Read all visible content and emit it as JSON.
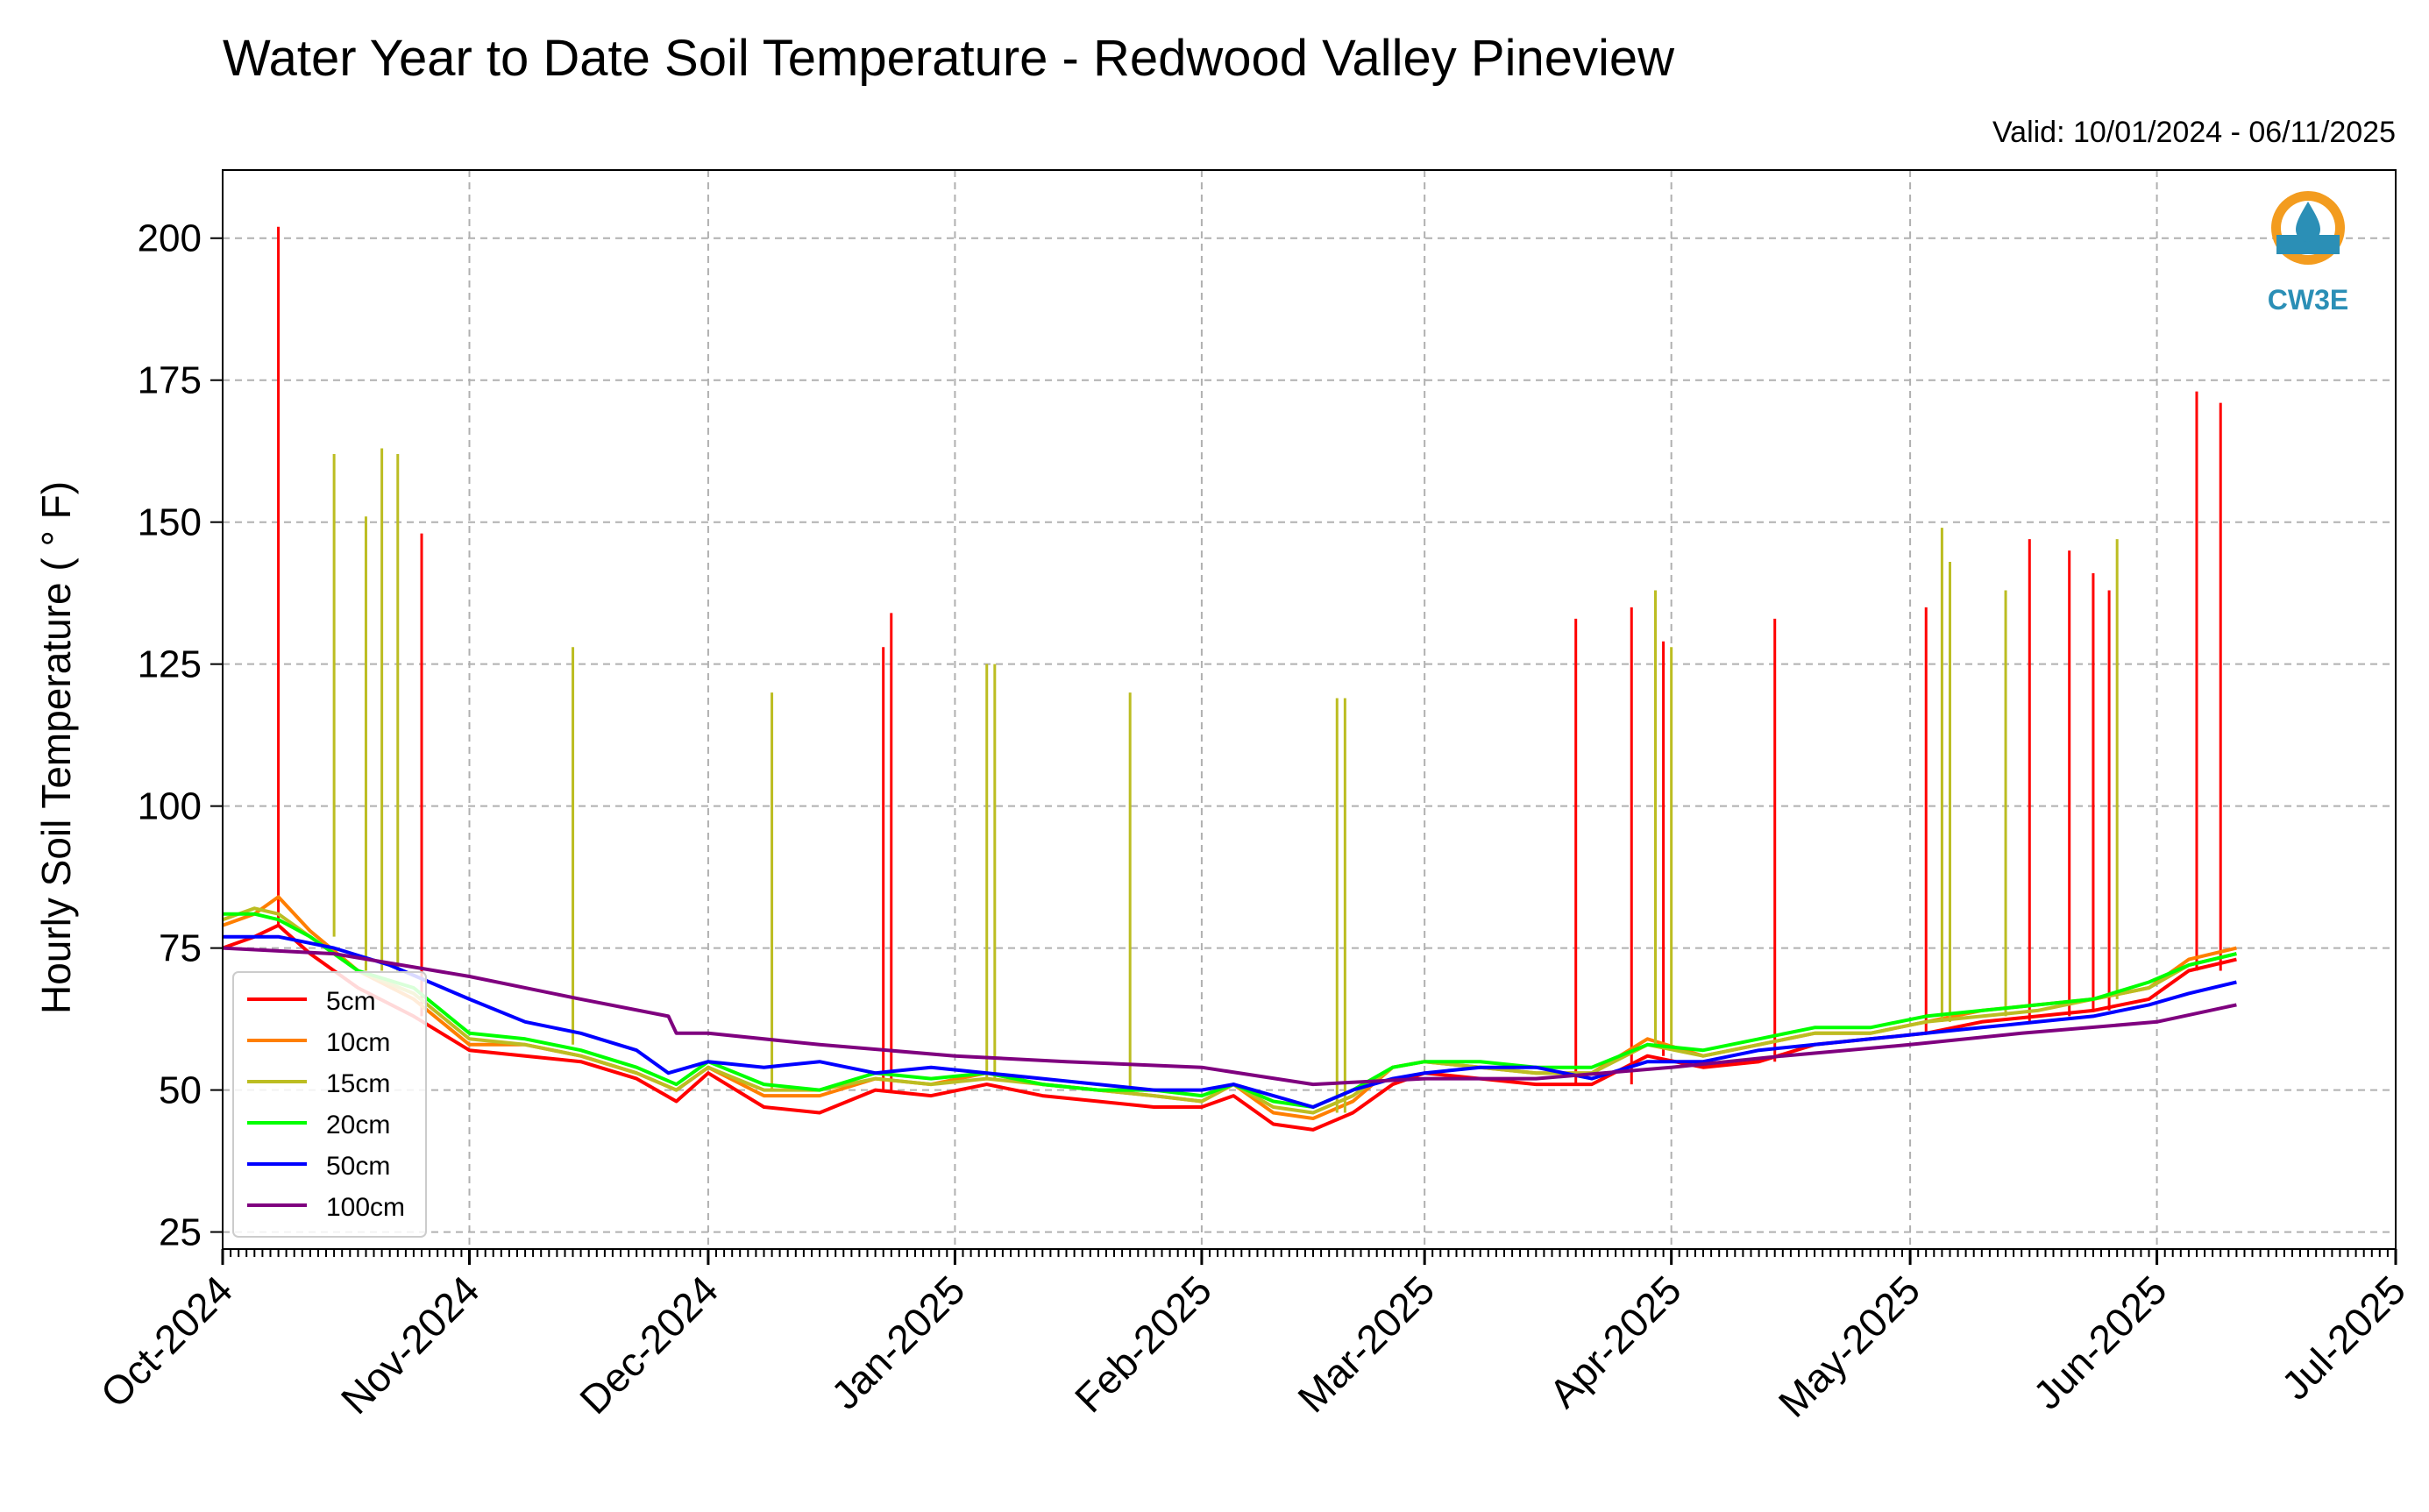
{
  "chart_data": {
    "type": "line",
    "title": "Water Year to Date Soil Temperature - Redwood Valley Pineview",
    "subtitle": "Valid: 10/01/2024 - 06/11/2025",
    "ylabel": "Hourly Soil Temperature ( ° F)",
    "xlabel": "",
    "ylim": [
      22,
      212
    ],
    "yticks": [
      25,
      50,
      75,
      100,
      125,
      150,
      175,
      200
    ],
    "x_range": [
      "2024-10-01",
      "2025-07-01"
    ],
    "x_tick_dates": [
      "2024-10-01",
      "2024-11-01",
      "2024-12-01",
      "2025-01-01",
      "2025-02-01",
      "2025-03-01",
      "2025-04-01",
      "2025-05-01",
      "2025-06-01",
      "2025-07-01"
    ],
    "x_tick_labels": [
      "Oct-2024",
      "Nov-2024",
      "Dec-2024",
      "Jan-2025",
      "Feb-2025",
      "Mar-2025",
      "Apr-2025",
      "May-2025",
      "Jun-2025",
      "Jul-2025"
    ],
    "grid": true,
    "legend_position": "lower-left",
    "logo_text": "CW3E",
    "series": [
      {
        "name": "5cm",
        "color": "#ff0000",
        "points": [
          [
            "2024-10-01",
            75
          ],
          [
            "2024-10-05",
            77
          ],
          [
            "2024-10-08",
            79
          ],
          [
            "2024-10-12",
            74
          ],
          [
            "2024-10-18",
            68
          ],
          [
            "2024-10-25",
            63
          ],
          [
            "2024-11-01",
            57
          ],
          [
            "2024-11-08",
            56
          ],
          [
            "2024-11-15",
            55
          ],
          [
            "2024-11-22",
            52
          ],
          [
            "2024-11-27",
            48
          ],
          [
            "2024-12-01",
            53
          ],
          [
            "2024-12-08",
            47
          ],
          [
            "2024-12-15",
            46
          ],
          [
            "2024-12-22",
            50
          ],
          [
            "2024-12-29",
            49
          ],
          [
            "2025-01-05",
            51
          ],
          [
            "2025-01-12",
            49
          ],
          [
            "2025-01-19",
            48
          ],
          [
            "2025-01-26",
            47
          ],
          [
            "2025-02-01",
            47
          ],
          [
            "2025-02-05",
            49
          ],
          [
            "2025-02-10",
            44
          ],
          [
            "2025-02-15",
            43
          ],
          [
            "2025-02-20",
            46
          ],
          [
            "2025-02-25",
            51
          ],
          [
            "2025-03-01",
            53
          ],
          [
            "2025-03-08",
            52
          ],
          [
            "2025-03-15",
            51
          ],
          [
            "2025-03-22",
            51
          ],
          [
            "2025-03-29",
            56
          ],
          [
            "2025-04-05",
            54
          ],
          [
            "2025-04-12",
            55
          ],
          [
            "2025-04-19",
            58
          ],
          [
            "2025-04-26",
            59
          ],
          [
            "2025-05-03",
            60
          ],
          [
            "2025-05-10",
            62
          ],
          [
            "2025-05-17",
            63
          ],
          [
            "2025-05-24",
            64
          ],
          [
            "2025-05-31",
            66
          ],
          [
            "2025-06-05",
            71
          ],
          [
            "2025-06-11",
            73
          ]
        ],
        "spikes": [
          [
            "2024-10-08",
            202
          ],
          [
            "2024-10-26",
            148
          ],
          [
            "2024-12-23",
            128
          ],
          [
            "2024-12-24",
            134
          ],
          [
            "2025-03-20",
            133
          ],
          [
            "2025-03-27",
            135
          ],
          [
            "2025-03-31",
            129
          ],
          [
            "2025-04-14",
            133
          ],
          [
            "2025-05-03",
            135
          ],
          [
            "2025-05-16",
            147
          ],
          [
            "2025-05-21",
            145
          ],
          [
            "2025-05-24",
            141
          ],
          [
            "2025-05-26",
            138
          ],
          [
            "2025-06-06",
            173
          ],
          [
            "2025-06-09",
            171
          ]
        ]
      },
      {
        "name": "10cm",
        "color": "#ff7f00",
        "points": [
          [
            "2024-10-01",
            79
          ],
          [
            "2024-10-05",
            81
          ],
          [
            "2024-10-08",
            84
          ],
          [
            "2024-10-12",
            78
          ],
          [
            "2024-10-18",
            71
          ],
          [
            "2024-10-25",
            66
          ],
          [
            "2024-11-01",
            58
          ],
          [
            "2024-11-08",
            58
          ],
          [
            "2024-11-15",
            56
          ],
          [
            "2024-11-22",
            53
          ],
          [
            "2024-11-27",
            50
          ],
          [
            "2024-12-01",
            54
          ],
          [
            "2024-12-08",
            49
          ],
          [
            "2024-12-15",
            49
          ],
          [
            "2024-12-22",
            52
          ],
          [
            "2024-12-29",
            51
          ],
          [
            "2025-01-05",
            53
          ],
          [
            "2025-01-12",
            51
          ],
          [
            "2025-01-19",
            50
          ],
          [
            "2025-01-26",
            49
          ],
          [
            "2025-02-01",
            48
          ],
          [
            "2025-02-05",
            51
          ],
          [
            "2025-02-10",
            46
          ],
          [
            "2025-02-15",
            45
          ],
          [
            "2025-02-20",
            48
          ],
          [
            "2025-02-25",
            54
          ],
          [
            "2025-03-01",
            55
          ],
          [
            "2025-03-08",
            54
          ],
          [
            "2025-03-15",
            53
          ],
          [
            "2025-03-22",
            53
          ],
          [
            "2025-03-29",
            59
          ],
          [
            "2025-04-05",
            56
          ],
          [
            "2025-04-12",
            58
          ],
          [
            "2025-04-19",
            60
          ],
          [
            "2025-04-26",
            60
          ],
          [
            "2025-05-03",
            62
          ],
          [
            "2025-05-10",
            64
          ],
          [
            "2025-05-17",
            65
          ],
          [
            "2025-05-24",
            66
          ],
          [
            "2025-05-31",
            68
          ],
          [
            "2025-06-05",
            73
          ],
          [
            "2025-06-11",
            75
          ]
        ],
        "spikes": []
      },
      {
        "name": "15cm",
        "color": "#bcbd22",
        "points": [
          [
            "2024-10-01",
            80
          ],
          [
            "2024-10-05",
            82
          ],
          [
            "2024-10-08",
            81
          ],
          [
            "2024-10-12",
            77
          ],
          [
            "2024-10-18",
            71
          ],
          [
            "2024-10-25",
            67
          ],
          [
            "2024-11-01",
            59
          ],
          [
            "2024-11-08",
            58
          ],
          [
            "2024-11-15",
            56
          ],
          [
            "2024-11-22",
            53
          ],
          [
            "2024-11-27",
            50
          ],
          [
            "2024-12-01",
            54
          ],
          [
            "2024-12-08",
            50
          ],
          [
            "2024-12-15",
            50
          ],
          [
            "2024-12-22",
            52
          ],
          [
            "2024-12-29",
            51
          ],
          [
            "2025-01-05",
            52
          ],
          [
            "2025-01-12",
            51
          ],
          [
            "2025-01-19",
            50
          ],
          [
            "2025-01-26",
            49
          ],
          [
            "2025-02-01",
            48
          ],
          [
            "2025-02-05",
            51
          ],
          [
            "2025-02-10",
            47
          ],
          [
            "2025-02-15",
            46
          ],
          [
            "2025-02-20",
            49
          ],
          [
            "2025-02-25",
            54
          ],
          [
            "2025-03-01",
            55
          ],
          [
            "2025-03-08",
            54
          ],
          [
            "2025-03-15",
            53
          ],
          [
            "2025-03-22",
            53
          ],
          [
            "2025-03-29",
            58
          ],
          [
            "2025-04-05",
            56
          ],
          [
            "2025-04-12",
            58
          ],
          [
            "2025-04-19",
            60
          ],
          [
            "2025-04-26",
            60
          ],
          [
            "2025-05-03",
            62
          ],
          [
            "2025-05-10",
            63
          ],
          [
            "2025-05-17",
            64
          ],
          [
            "2025-05-24",
            66
          ],
          [
            "2025-05-31",
            68
          ],
          [
            "2025-06-05",
            72
          ],
          [
            "2025-06-11",
            74
          ]
        ],
        "spikes": [
          [
            "2024-10-15",
            162
          ],
          [
            "2024-10-19",
            151
          ],
          [
            "2024-10-21",
            163
          ],
          [
            "2024-10-23",
            162
          ],
          [
            "2024-11-14",
            128
          ],
          [
            "2024-12-09",
            120
          ],
          [
            "2025-01-05",
            125
          ],
          [
            "2025-01-06",
            125
          ],
          [
            "2025-01-23",
            120
          ],
          [
            "2025-02-18",
            119
          ],
          [
            "2025-02-19",
            119
          ],
          [
            "2025-03-30",
            138
          ],
          [
            "2025-04-01",
            128
          ],
          [
            "2025-05-05",
            149
          ],
          [
            "2025-05-06",
            143
          ],
          [
            "2025-05-13",
            138
          ],
          [
            "2025-05-27",
            147
          ]
        ]
      },
      {
        "name": "20cm",
        "color": "#00ff00",
        "points": [
          [
            "2024-10-01",
            81
          ],
          [
            "2024-10-05",
            81
          ],
          [
            "2024-10-08",
            80
          ],
          [
            "2024-10-12",
            77
          ],
          [
            "2024-10-18",
            71
          ],
          [
            "2024-10-25",
            68
          ],
          [
            "2024-11-01",
            60
          ],
          [
            "2024-11-08",
            59
          ],
          [
            "2024-11-15",
            57
          ],
          [
            "2024-11-22",
            54
          ],
          [
            "2024-11-27",
            51
          ],
          [
            "2024-12-01",
            55
          ],
          [
            "2024-12-08",
            51
          ],
          [
            "2024-12-15",
            50
          ],
          [
            "2024-12-22",
            53
          ],
          [
            "2024-12-29",
            52
          ],
          [
            "2025-01-05",
            53
          ],
          [
            "2025-01-12",
            51
          ],
          [
            "2025-01-19",
            50
          ],
          [
            "2025-01-26",
            50
          ],
          [
            "2025-02-01",
            49
          ],
          [
            "2025-02-05",
            51
          ],
          [
            "2025-02-10",
            48
          ],
          [
            "2025-02-15",
            47
          ],
          [
            "2025-02-20",
            50
          ],
          [
            "2025-02-25",
            54
          ],
          [
            "2025-03-01",
            55
          ],
          [
            "2025-03-08",
            55
          ],
          [
            "2025-03-15",
            54
          ],
          [
            "2025-03-22",
            54
          ],
          [
            "2025-03-29",
            58
          ],
          [
            "2025-04-05",
            57
          ],
          [
            "2025-04-12",
            59
          ],
          [
            "2025-04-19",
            61
          ],
          [
            "2025-04-26",
            61
          ],
          [
            "2025-05-03",
            63
          ],
          [
            "2025-05-10",
            64
          ],
          [
            "2025-05-17",
            65
          ],
          [
            "2025-05-24",
            66
          ],
          [
            "2025-05-31",
            69
          ],
          [
            "2025-06-05",
            72
          ],
          [
            "2025-06-11",
            74
          ]
        ],
        "spikes": []
      },
      {
        "name": "50cm",
        "color": "#0000ff",
        "points": [
          [
            "2024-10-01",
            77
          ],
          [
            "2024-10-08",
            77
          ],
          [
            "2024-10-15",
            75
          ],
          [
            "2024-10-22",
            72
          ],
          [
            "2024-11-01",
            66
          ],
          [
            "2024-11-08",
            62
          ],
          [
            "2024-11-15",
            60
          ],
          [
            "2024-11-22",
            57
          ],
          [
            "2024-11-26",
            53
          ],
          [
            "2024-12-01",
            55
          ],
          [
            "2024-12-08",
            54
          ],
          [
            "2024-12-15",
            55
          ],
          [
            "2024-12-22",
            53
          ],
          [
            "2024-12-29",
            54
          ],
          [
            "2025-01-05",
            53
          ],
          [
            "2025-01-12",
            52
          ],
          [
            "2025-01-19",
            51
          ],
          [
            "2025-01-26",
            50
          ],
          [
            "2025-02-01",
            50
          ],
          [
            "2025-02-05",
            51
          ],
          [
            "2025-02-10",
            49
          ],
          [
            "2025-02-15",
            47
          ],
          [
            "2025-02-20",
            50
          ],
          [
            "2025-02-25",
            52
          ],
          [
            "2025-03-01",
            53
          ],
          [
            "2025-03-08",
            54
          ],
          [
            "2025-03-15",
            54
          ],
          [
            "2025-03-22",
            52
          ],
          [
            "2025-03-29",
            55
          ],
          [
            "2025-04-05",
            55
          ],
          [
            "2025-04-12",
            57
          ],
          [
            "2025-04-19",
            58
          ],
          [
            "2025-04-26",
            59
          ],
          [
            "2025-05-03",
            60
          ],
          [
            "2025-05-10",
            61
          ],
          [
            "2025-05-17",
            62
          ],
          [
            "2025-05-24",
            63
          ],
          [
            "2025-05-31",
            65
          ],
          [
            "2025-06-05",
            67
          ],
          [
            "2025-06-11",
            69
          ]
        ],
        "spikes": []
      },
      {
        "name": "100cm",
        "color": "#7f007f",
        "points": [
          [
            "2024-10-01",
            75
          ],
          [
            "2024-10-15",
            74
          ],
          [
            "2024-11-01",
            70
          ],
          [
            "2024-11-15",
            66
          ],
          [
            "2024-11-26",
            63
          ],
          [
            "2024-11-27",
            60
          ],
          [
            "2024-12-01",
            60
          ],
          [
            "2024-12-15",
            58
          ],
          [
            "2025-01-01",
            56
          ],
          [
            "2025-01-15",
            55
          ],
          [
            "2025-02-01",
            54
          ],
          [
            "2025-02-15",
            51
          ],
          [
            "2025-03-01",
            52
          ],
          [
            "2025-03-15",
            52
          ],
          [
            "2025-04-01",
            54
          ],
          [
            "2025-04-15",
            56
          ],
          [
            "2025-05-01",
            58
          ],
          [
            "2025-05-15",
            60
          ],
          [
            "2025-06-01",
            62
          ],
          [
            "2025-06-11",
            65
          ]
        ],
        "spikes": []
      }
    ]
  }
}
